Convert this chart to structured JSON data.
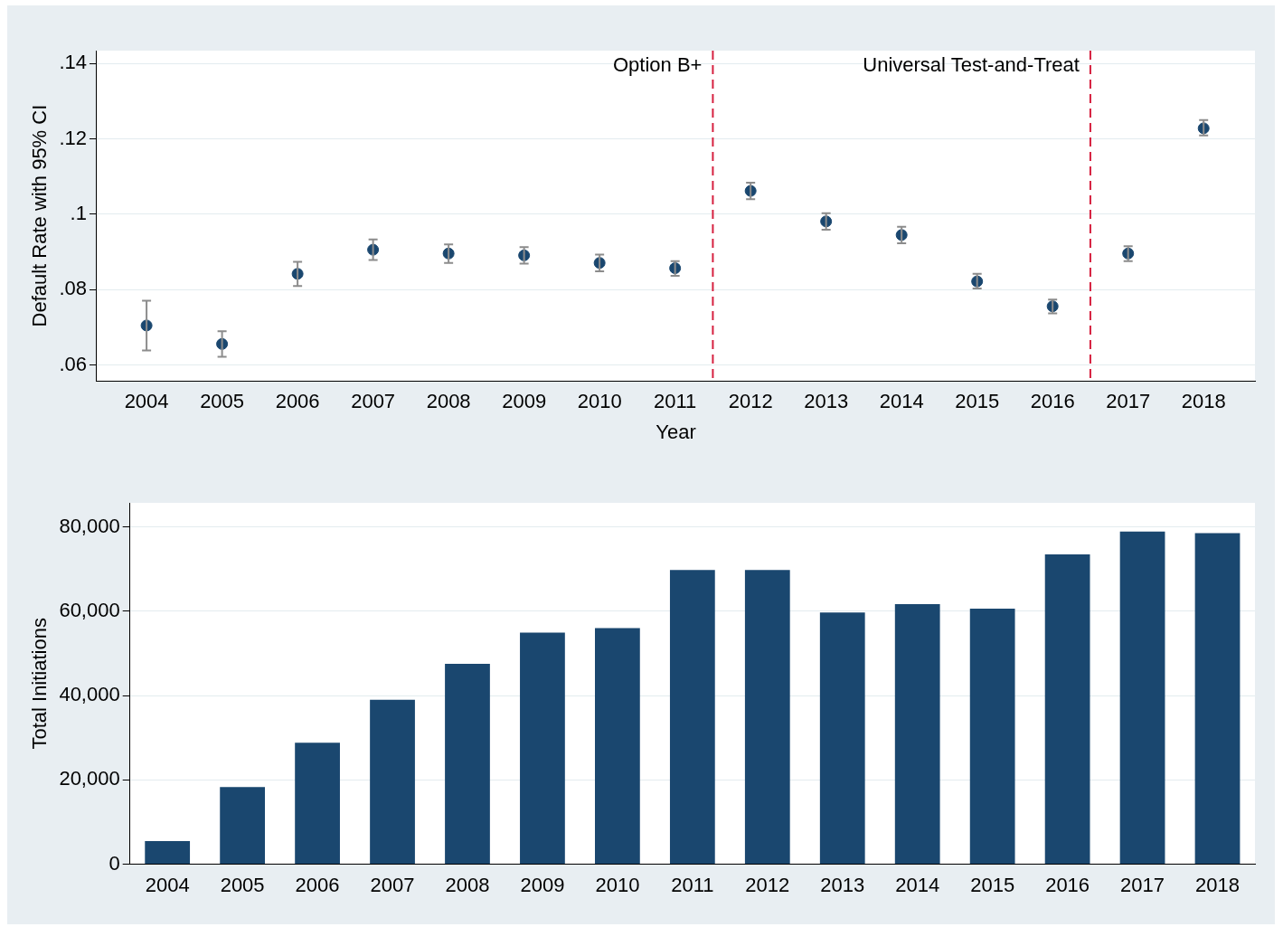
{
  "chart_data": [
    {
      "type": "scatter",
      "xlabel": "Year",
      "ylabel": "Default Rate with 95% CI",
      "x": [
        2004,
        2005,
        2006,
        2007,
        2008,
        2009,
        2010,
        2011,
        2012,
        2013,
        2014,
        2015,
        2016,
        2017,
        2018
      ],
      "series": [
        {
          "color": "#1a476f",
          "values": [
            0.0705,
            0.0656,
            0.0842,
            0.0906,
            0.0896,
            0.0891,
            0.0871,
            0.0857,
            0.1062,
            0.0981,
            0.0945,
            0.0822,
            0.0756,
            0.0896,
            0.1228
          ],
          "errors": [
            [
              0.0639,
              0.0771
            ],
            [
              0.0622,
              0.069
            ],
            [
              0.081,
              0.0874
            ],
            [
              0.0879,
              0.0933
            ],
            [
              0.0871,
              0.092
            ],
            [
              0.0869,
              0.0913
            ],
            [
              0.0849,
              0.0893
            ],
            [
              0.0837,
              0.0876
            ],
            [
              0.104,
              0.1084
            ],
            [
              0.0959,
              0.1003
            ],
            [
              0.0923,
              0.0967
            ],
            [
              0.0803,
              0.0842
            ],
            [
              0.0737,
              0.0774
            ],
            [
              0.0876,
              0.0915
            ],
            [
              0.1209,
              0.125
            ]
          ]
        }
      ],
      "xlim": [
        2003.34,
        2018.68
      ],
      "xticks": [
        2004,
        2005,
        2006,
        2007,
        2008,
        2009,
        2010,
        2011,
        2012,
        2013,
        2014,
        2015,
        2016,
        2017,
        2018
      ],
      "ylim": [
        0.0558,
        0.1434
      ],
      "yticks": [
        {
          "value": 0.06,
          "label": ".06"
        },
        {
          "value": 0.08,
          "label": ".08"
        },
        {
          "value": 0.1,
          "label": ".1"
        },
        {
          "value": 0.12,
          "label": ".12"
        },
        {
          "value": 0.14,
          "label": ".14"
        }
      ],
      "ref_lines": [
        {
          "axis": "x",
          "value": 2011.5,
          "label": "Option B+",
          "color": "#d6203f",
          "line_style": "dashed"
        },
        {
          "axis": "x",
          "value": 2016.5,
          "label": "Universal Test-and-Treat",
          "color": "#d6203f",
          "line_style": "dashed"
        }
      ],
      "grid": "y",
      "legend": false,
      "marker": "circle"
    },
    {
      "type": "bar",
      "ylabel": "Total Initiations",
      "categories": [
        "2004",
        "2005",
        "2006",
        "2007",
        "2008",
        "2009",
        "2010",
        "2011",
        "2012",
        "2013",
        "2014",
        "2015",
        "2016",
        "2017",
        "2018"
      ],
      "values": [
        5500,
        18300,
        28800,
        39000,
        47500,
        54900,
        56000,
        69800,
        69800,
        59700,
        61700,
        60600,
        73500,
        78900,
        78500
      ],
      "color": "#1a476f",
      "ylim": [
        0,
        85700
      ],
      "yticks": [
        0,
        {
          "value": 20000,
          "label": "20,000"
        },
        {
          "value": 40000,
          "label": "40,000"
        },
        {
          "value": 60000,
          "label": "60,000"
        },
        {
          "value": 80000,
          "label": "80,000"
        }
      ],
      "grid": "y",
      "legend": false
    }
  ]
}
